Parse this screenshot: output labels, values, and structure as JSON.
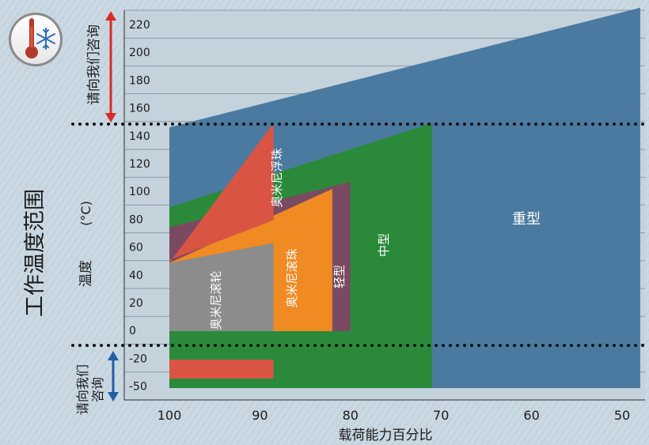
{
  "chart_data": {
    "type": "area",
    "title": "工作温度范围",
    "ylabel": "温度",
    "ylabel_unit": "(°C)",
    "xlabel": "载荷能力百分比",
    "x_ticks": [
      "100",
      "90",
      "80",
      "70",
      "60",
      "50"
    ],
    "y_ticks": [
      "220",
      "200",
      "180",
      "160",
      "140",
      "120",
      "100",
      "80",
      "60",
      "40",
      "20",
      "0",
      "-20",
      "-50"
    ],
    "xlim": [
      100,
      48
    ],
    "note_high": "请向我们咨询",
    "note_low": "请向我们咨询",
    "series": [
      {
        "name": "重型",
        "color": "#4a7a9f",
        "temp_range": [
          -50,
          230
        ],
        "load_range": [
          48,
          100
        ]
      },
      {
        "name": "中型",
        "color": "#2a8a3a",
        "temp_range": [
          -50,
          148
        ],
        "load_range": [
          71,
          100
        ]
      },
      {
        "name": "轻型",
        "color": "#7a4a62",
        "temp_range": [
          0,
          105
        ],
        "load_range": [
          80,
          100
        ]
      },
      {
        "name": "奥米尼滚珠",
        "color": "#f08a22",
        "temp_range": [
          0,
          100
        ],
        "load_range": [
          82,
          100
        ]
      },
      {
        "name": "奥米尼浮珠",
        "color": "#d95442",
        "temp_range": [
          -40,
          148
        ],
        "load_range": [
          88,
          100
        ]
      },
      {
        "name": "奥米尼滚轮",
        "color": "#8c8c8c",
        "temp_range": [
          0,
          62
        ],
        "load_range": [
          88,
          100
        ]
      }
    ]
  }
}
